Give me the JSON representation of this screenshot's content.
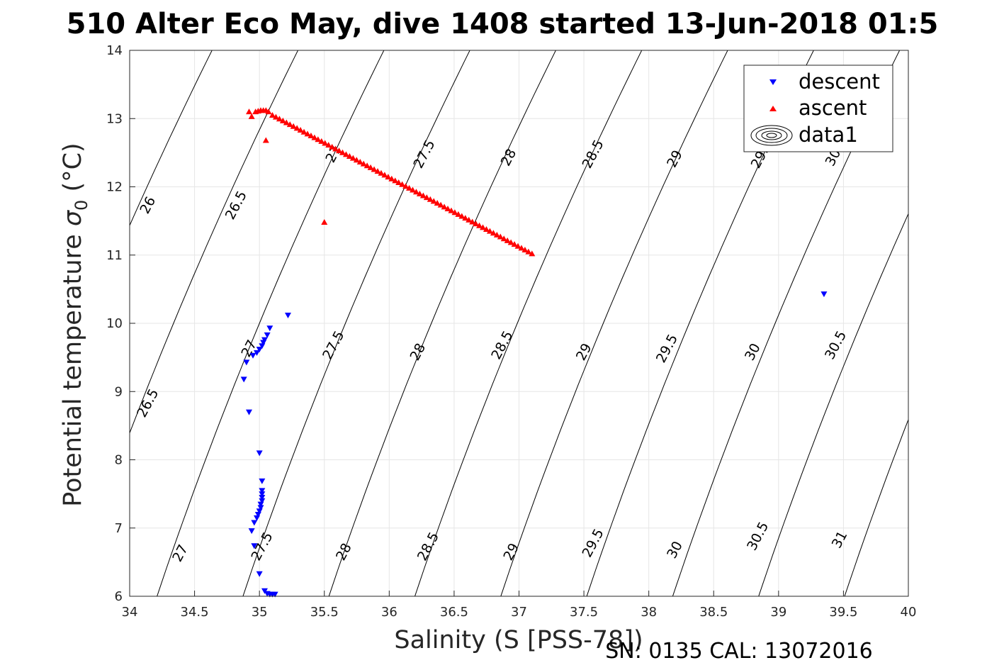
{
  "title": "510 Alter Eco May, dive 1408 started 13-Jun-2018 01:5",
  "footer": "SN: 0135  CAL: 13072016",
  "colors": {
    "descent": "#0000ff",
    "ascent": "#ff0000",
    "grid": "#e6e6e6",
    "contour": "#000000"
  },
  "chart_data": {
    "type": "scatter",
    "xlabel": "Salinity (S [PSS-78])",
    "ylabel_main": "Potential temperature ",
    "ylabel_sigma": "σ",
    "ylabel_sub": "0",
    "ylabel_unit": " (°C)",
    "xlim": [
      34,
      40
    ],
    "ylim": [
      6,
      14
    ],
    "xticks": [
      "34",
      "34.5",
      "35",
      "35.5",
      "36",
      "36.5",
      "37",
      "37.5",
      "38",
      "38.5",
      "39",
      "39.5",
      "40"
    ],
    "yticks": [
      "6",
      "7",
      "8",
      "9",
      "10",
      "11",
      "12",
      "13",
      "14"
    ],
    "grid": true,
    "legend_position": "top-right",
    "legend": [
      "descent",
      "ascent",
      "data1"
    ],
    "contour_levels": [
      26,
      26.5,
      27,
      27.5,
      28,
      28.5,
      29,
      29.5,
      30,
      30.5,
      31
    ],
    "contour_labels": [
      {
        "text": "26",
        "x": 34.17,
        "y": 11.7
      },
      {
        "text": "26.5",
        "x": 34.85,
        "y": 11.7
      },
      {
        "text": "27",
        "x": 35.6,
        "y": 12.45
      },
      {
        "text": "27.5",
        "x": 36.3,
        "y": 12.45
      },
      {
        "text": "28",
        "x": 36.95,
        "y": 12.4
      },
      {
        "text": "28.5",
        "x": 37.6,
        "y": 12.45
      },
      {
        "text": "29",
        "x": 38.23,
        "y": 12.38
      },
      {
        "text": "29.5",
        "x": 38.9,
        "y": 12.45
      },
      {
        "text": "30",
        "x": 39.45,
        "y": 12.4
      },
      {
        "text": "26.5",
        "x": 34.17,
        "y": 8.8
      },
      {
        "text": "27",
        "x": 34.95,
        "y": 9.6
      },
      {
        "text": "27.5",
        "x": 35.6,
        "y": 9.65
      },
      {
        "text": "28",
        "x": 36.25,
        "y": 9.55
      },
      {
        "text": "28.5",
        "x": 36.9,
        "y": 9.65
      },
      {
        "text": "29",
        "x": 37.53,
        "y": 9.55
      },
      {
        "text": "29.5",
        "x": 38.17,
        "y": 9.6
      },
      {
        "text": "30",
        "x": 38.83,
        "y": 9.55
      },
      {
        "text": "30.5",
        "x": 39.47,
        "y": 9.65
      },
      {
        "text": "27",
        "x": 34.42,
        "y": 6.6
      },
      {
        "text": "27.5",
        "x": 35.05,
        "y": 6.7
      },
      {
        "text": "28",
        "x": 35.68,
        "y": 6.62
      },
      {
        "text": "28.5",
        "x": 36.33,
        "y": 6.7
      },
      {
        "text": "29",
        "x": 36.97,
        "y": 6.62
      },
      {
        "text": "29.5",
        "x": 37.6,
        "y": 6.75
      },
      {
        "text": "30",
        "x": 38.23,
        "y": 6.65
      },
      {
        "text": "30.5",
        "x": 38.87,
        "y": 6.85
      },
      {
        "text": "31",
        "x": 39.5,
        "y": 6.8
      }
    ],
    "series": [
      {
        "name": "descent",
        "marker": "triangle-down",
        "points": [
          [
            35.22,
            10.12
          ],
          [
            35.08,
            9.93
          ],
          [
            35.06,
            9.83
          ],
          [
            35.04,
            9.76
          ],
          [
            35.03,
            9.72
          ],
          [
            35.02,
            9.67
          ],
          [
            35.0,
            9.62
          ],
          [
            34.98,
            9.57
          ],
          [
            34.95,
            9.53
          ],
          [
            34.9,
            9.43
          ],
          [
            34.88,
            9.18
          ],
          [
            34.92,
            8.7
          ],
          [
            35.0,
            8.1
          ],
          [
            35.02,
            7.69
          ],
          [
            35.02,
            7.55
          ],
          [
            35.02,
            7.5
          ],
          [
            35.02,
            7.45
          ],
          [
            35.02,
            7.4
          ],
          [
            35.01,
            7.35
          ],
          [
            35.01,
            7.3
          ],
          [
            35.0,
            7.25
          ],
          [
            34.99,
            7.2
          ],
          [
            34.98,
            7.15
          ],
          [
            34.96,
            7.08
          ],
          [
            34.94,
            6.96
          ],
          [
            34.96,
            6.74
          ],
          [
            35.0,
            6.33
          ],
          [
            35.04,
            6.08
          ],
          [
            35.06,
            6.04
          ],
          [
            35.08,
            6.03
          ],
          [
            35.1,
            6.03
          ],
          [
            35.12,
            6.03
          ],
          [
            39.35,
            10.43
          ]
        ]
      },
      {
        "name": "ascent",
        "marker": "triangle-up",
        "line": {
          "x0": 35.1,
          "y0": 13.05,
          "x1": 37.1,
          "y1": 11.02,
          "n": 75
        },
        "points": [
          [
            34.92,
            13.1
          ],
          [
            34.94,
            13.03
          ],
          [
            34.97,
            13.1
          ],
          [
            34.99,
            13.11
          ],
          [
            35.01,
            13.12
          ],
          [
            35.03,
            13.12
          ],
          [
            35.05,
            13.12
          ],
          [
            35.07,
            13.1
          ],
          [
            35.05,
            12.68
          ],
          [
            35.5,
            11.48
          ]
        ]
      },
      {
        "name": "data1",
        "marker": "contour"
      }
    ]
  }
}
